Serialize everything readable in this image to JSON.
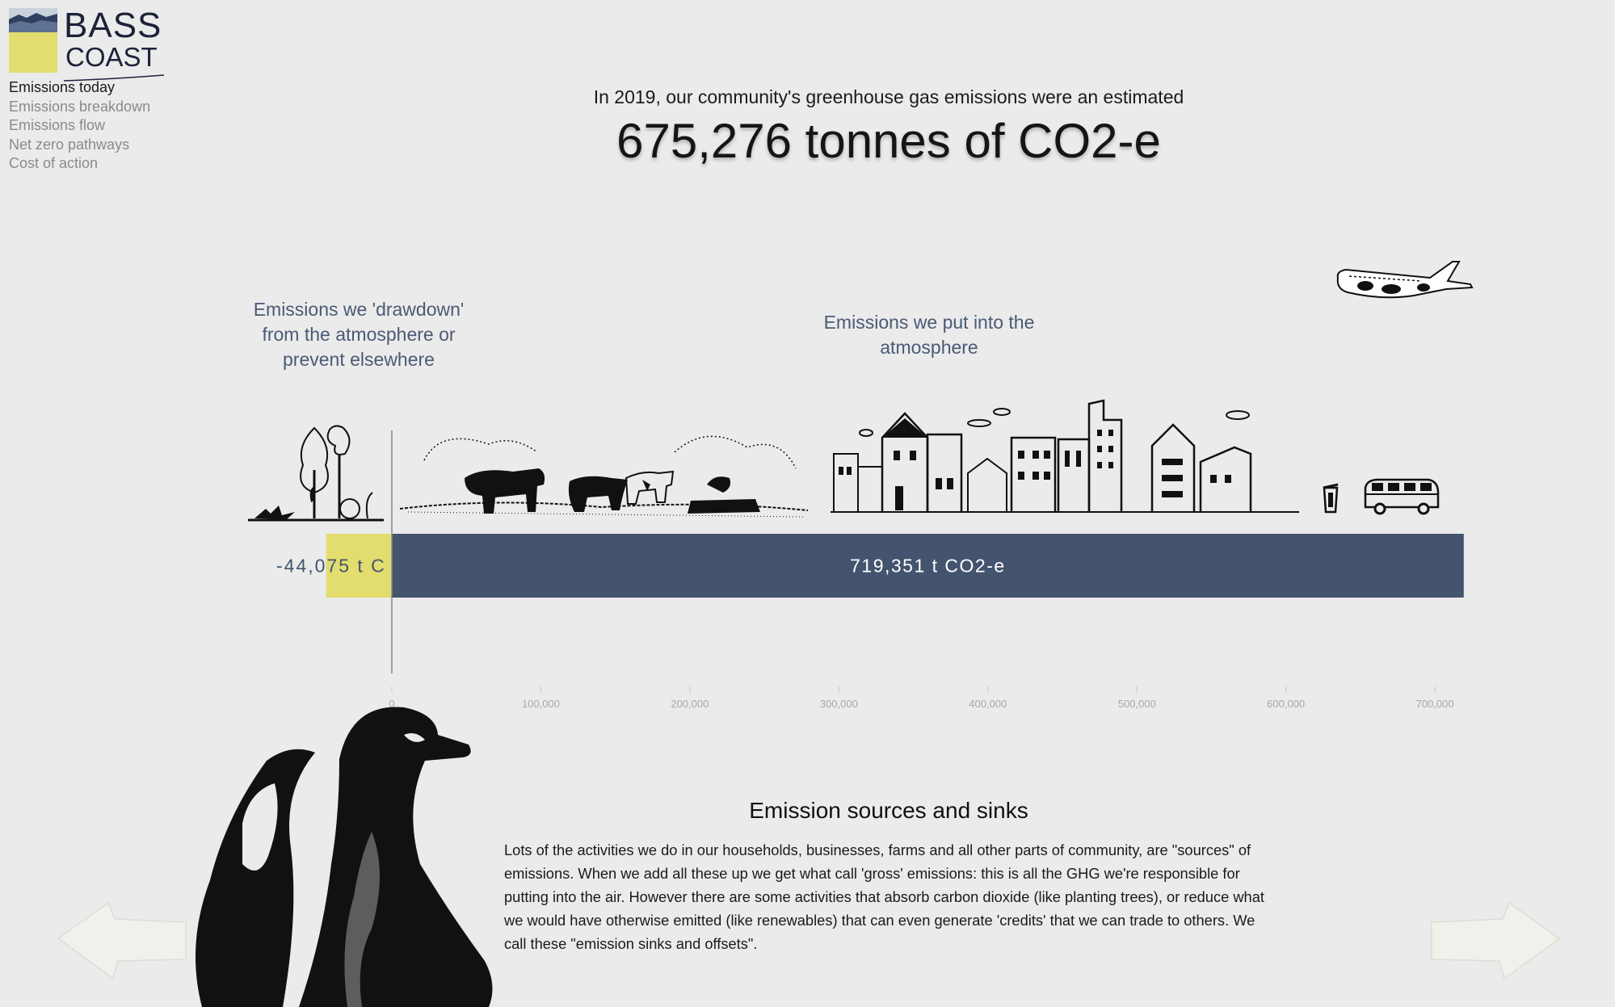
{
  "brand": {
    "line1": "BASS",
    "line2": "COAST",
    "colors": {
      "yellow": "#e2dd6e",
      "blue": "#44546f"
    }
  },
  "nav": {
    "items": [
      {
        "label": "Emissions today",
        "active": true
      },
      {
        "label": "Emissions breakdown",
        "active": false
      },
      {
        "label": "Emissions flow",
        "active": false
      },
      {
        "label": "Net zero pathways",
        "active": false
      },
      {
        "label": "Cost of action",
        "active": false
      }
    ]
  },
  "intro": "In 2019, our community's greenhouse gas emissions were an estimated",
  "headline": "675,276 tonnes of CO2-e",
  "labels": {
    "drawdown": "Emissions we 'drawdown' from the atmosphere or prevent elsewhere",
    "emitted": "Emissions we put into the atmosphere"
  },
  "chart_data": {
    "type": "bar",
    "orientation": "horizontal",
    "series": [
      {
        "name": "Emissions we 'drawdown' from the atmosphere or prevent elsewhere",
        "value": -44075,
        "label": "-44,075 t C",
        "color": "#e2dd6e"
      },
      {
        "name": "Emissions we put into the atmosphere",
        "value": 719351,
        "label": "719,351 t CO2-e",
        "color": "#44546f"
      }
    ],
    "xlim": [
      -50000,
      720000
    ],
    "ticks": [
      0,
      100000,
      200000,
      300000,
      400000,
      500000,
      600000,
      700000
    ],
    "tick_labels": [
      "0",
      "100,000",
      "200,000",
      "300,000",
      "400,000",
      "500,000",
      "600,000",
      "700,000"
    ],
    "grid": false
  },
  "section": {
    "title": "Emission sources and sinks",
    "body": "Lots of the activities we do in our households, businesses, farms and all other parts of community, are \"sources\" of emissions. When we add all these up we get what call 'gross' emissions: this is all the GHG we're responsible for putting into the air. However there are some activities that absorb carbon dioxide (like planting trees), or reduce what we would have otherwise emitted (like renewables) that can even generate 'credits' that we can trade to others. We call these \"emission sinks and offsets\"."
  },
  "icons": {
    "trees": "trees-illustration",
    "cows": "cows-illustration",
    "town": "town-illustration",
    "bin": "bin-illustration",
    "van": "van-illustration",
    "plane": "airplane-illustration",
    "penguins": "penguins-illustration",
    "prev": "arrow-left-icon",
    "next": "arrow-right-icon"
  }
}
